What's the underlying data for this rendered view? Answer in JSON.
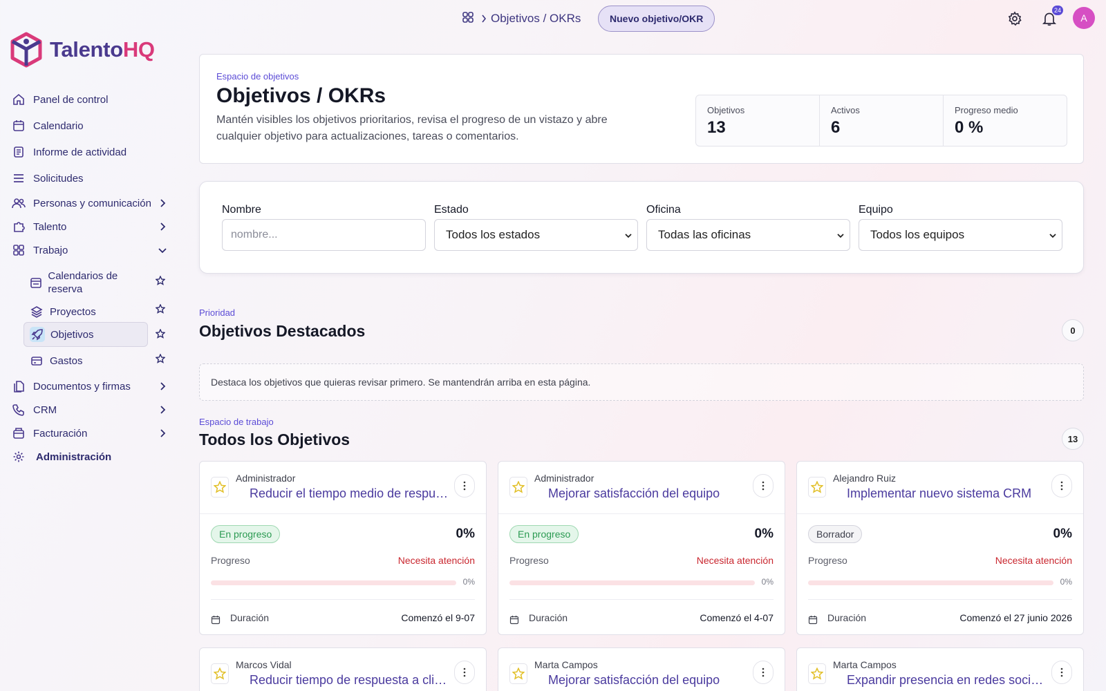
{
  "brand": {
    "name_a": "Talento",
    "name_b": "HQ"
  },
  "nav": {
    "panel": "Panel de control",
    "calendario": "Calendario",
    "informe": "Informe de actividad",
    "solicitudes": "Solicitudes",
    "personas": "Personas y comunicación",
    "talento": "Talento",
    "trabajo": "Trabajo",
    "sub": {
      "calendarios": "Calendarios de reserva",
      "proyectos": "Proyectos",
      "objetivos": "Objetivos",
      "gastos": "Gastos"
    },
    "documentos": "Documentos y firmas",
    "crm": "CRM",
    "facturacion": "Facturación",
    "administracion": "Administración"
  },
  "topbar": {
    "breadcrumb": "Objetivos / OKRs",
    "new_button": "Nuevo objetivo/OKR",
    "notification_count": "24",
    "avatar_initial": "A"
  },
  "header": {
    "kicker": "Espacio de objetivos",
    "title": "Objetivos / OKRs",
    "description": "Mantén visibles los objetivos prioritarios, revisa el progreso de un vistazo y abre cualquier objetivo para actualizaciones, tareas o comentarios.",
    "stats": [
      {
        "label": "Objetivos",
        "value": "13"
      },
      {
        "label": "Activos",
        "value": "6"
      },
      {
        "label": "Progreso medio",
        "value": "0 %"
      }
    ]
  },
  "filters": {
    "name_label": "Nombre",
    "name_placeholder": "nombre...",
    "estado_label": "Estado",
    "estado_value": "Todos los estados",
    "oficina_label": "Oficina",
    "oficina_value": "Todas las oficinas",
    "equipo_label": "Equipo",
    "equipo_value": "Todos los equipos"
  },
  "featured": {
    "kicker": "Prioridad",
    "title": "Objetivos Destacados",
    "count": "0",
    "empty_text": "Destaca los objetivos que quieras revisar primero. Se mantendrán arriba en esta página."
  },
  "all": {
    "kicker": "Espacio de trabajo",
    "title": "Todos los Objetivos",
    "count": "13"
  },
  "common": {
    "progress_label": "Progreso",
    "attention": "Necesita atención",
    "duration_label": "Duración"
  },
  "objectives": [
    {
      "owner": "Administrador",
      "title": "Reducir el tiempo medio de respuesta",
      "status": "En progreso",
      "status_kind": "green",
      "percent": "0%",
      "progress": 0,
      "start": "Comenzó el 9-07"
    },
    {
      "owner": "Administrador",
      "title": "Mejorar satisfacción del equipo",
      "status": "En progreso",
      "status_kind": "green",
      "percent": "0%",
      "progress": 0,
      "start": "Comenzó el 4-07"
    },
    {
      "owner": "Alejandro Ruiz",
      "title": "Implementar nuevo sistema CRM",
      "status": "Borrador",
      "status_kind": "gray",
      "percent": "0%",
      "progress": 0,
      "start": "Comenzó el 27 junio 2026"
    },
    {
      "owner": "Marcos Vidal",
      "title": "Reducir tiempo de respuesta a clientes",
      "status": "",
      "status_kind": "green",
      "percent": "",
      "progress": 0,
      "start": ""
    },
    {
      "owner": "Marta Campos",
      "title": "Mejorar satisfacción del equipo",
      "status": "",
      "status_kind": "green",
      "percent": "",
      "progress": 0,
      "start": ""
    },
    {
      "owner": "Marta Campos",
      "title": "Expandir presencia en redes sociales",
      "status": "",
      "status_kind": "green",
      "percent": "",
      "progress": 0,
      "start": ""
    }
  ]
}
